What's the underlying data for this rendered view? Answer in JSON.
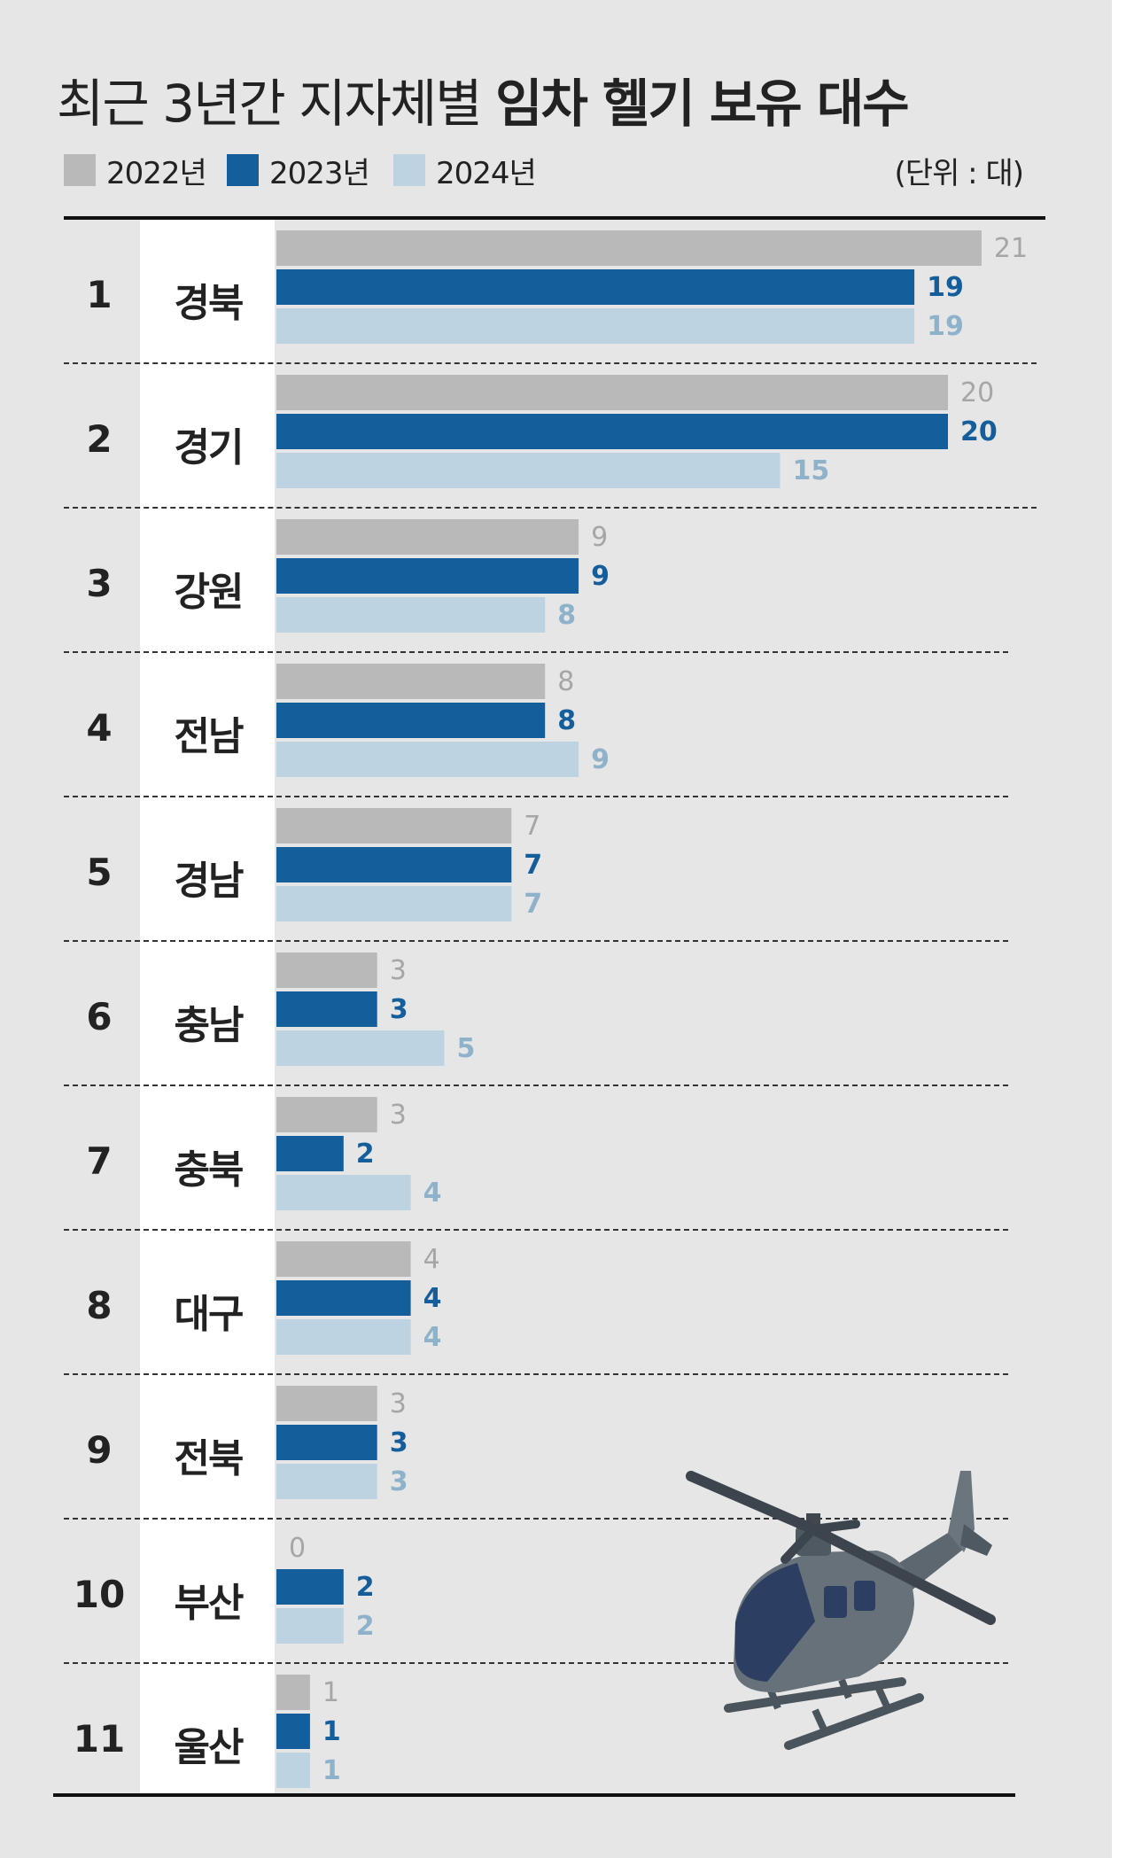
{
  "title": {
    "regular": "최근 3년간 지자체별",
    "bold": "임차 헬기 보유 대수"
  },
  "unit": "(단위 : 대)",
  "colors": {
    "y2022": "#b9b9b9",
    "y2023": "#135e9b",
    "y2024": "#bdd3e2",
    "label2022": "#a6a6a6",
    "label2023": "#135e9b",
    "label2024": "#8fb2cb"
  },
  "chart_data": {
    "type": "bar",
    "orientation": "horizontal",
    "title": "최근 3년간 지자체별 임차 헬기 보유 대수",
    "unit": "(단위 : 대)",
    "ranks": [
      "1",
      "2",
      "3",
      "4",
      "5",
      "6",
      "7",
      "8",
      "9",
      "10",
      "11"
    ],
    "categories": [
      "경북",
      "경기",
      "강원",
      "전남",
      "경남",
      "충남",
      "충북",
      "대구",
      "전북",
      "부산",
      "울산"
    ],
    "series": [
      {
        "name": "2022년",
        "values": [
          21,
          20,
          9,
          8,
          7,
          3,
          3,
          4,
          3,
          0,
          1
        ]
      },
      {
        "name": "2023년",
        "values": [
          19,
          20,
          9,
          8,
          7,
          3,
          2,
          4,
          3,
          2,
          1
        ]
      },
      {
        "name": "2024년",
        "values": [
          19,
          15,
          8,
          9,
          7,
          5,
          4,
          4,
          3,
          2,
          1
        ]
      }
    ],
    "grid": false,
    "legend": "top-left"
  },
  "icon": "helicopter-illustration"
}
